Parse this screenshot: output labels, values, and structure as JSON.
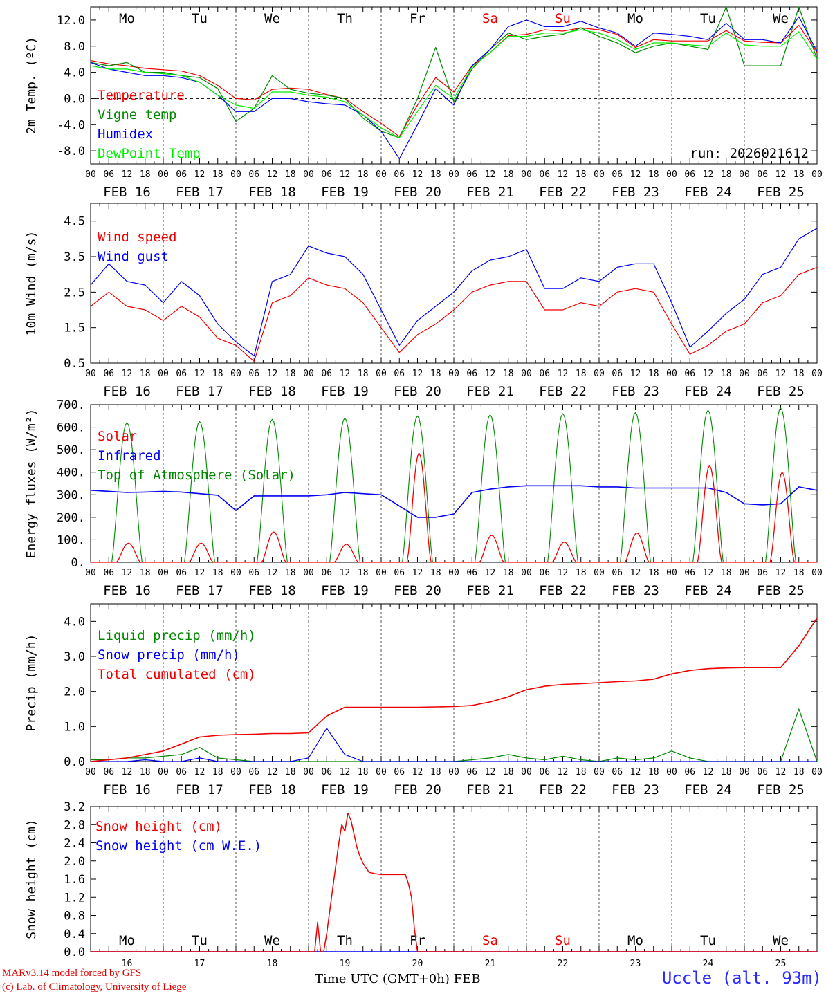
{
  "meta": {
    "run": "run: 2026021612",
    "credit_line1": "MARv3.14 model forced by GFS",
    "credit_line2": "(c) Lab. of Climatology, University of Liege",
    "location": "Uccle (alt. 93m)",
    "time_axis_label": "Time UTC (GMT+0h) FEB"
  },
  "colors": {
    "red": "#ee0000",
    "green": "#008800",
    "blue": "#0000ee",
    "lime": "#00ee00",
    "grid": "#555555"
  },
  "days": {
    "weekdays": [
      "Mo",
      "Tu",
      "We",
      "Th",
      "Fr",
      "Sa",
      "Su",
      "Mo",
      "Tu",
      "We"
    ],
    "weekday_colors": [
      "#000000",
      "#000000",
      "#000000",
      "#000000",
      "#000000",
      "#ee0000",
      "#ee0000",
      "#000000",
      "#000000",
      "#000000"
    ],
    "dates": [
      "FEB 16",
      "FEB 17",
      "FEB 18",
      "FEB 19",
      "FEB 20",
      "FEB 21",
      "FEB 22",
      "FEB 23",
      "FEB 24",
      "FEB 25"
    ],
    "day_numbers": [
      "16",
      "17",
      "18",
      "19",
      "20",
      "21",
      "22",
      "23",
      "24",
      "25"
    ],
    "hour_ticks": [
      "00",
      "06",
      "12",
      "18"
    ],
    "final_tick": "00"
  },
  "chart_data": [
    {
      "type": "line",
      "ylabel": "2m Temp. (ºC)",
      "ylim": [
        -10,
        14
      ],
      "yticks": [
        -8,
        -4,
        0,
        4,
        8,
        12
      ],
      "ytick_labels": [
        "-8.0",
        "-4.0",
        "0.0",
        "4.0",
        "8.0",
        "12.0"
      ],
      "zero_line": true,
      "x_hours": [
        0,
        6,
        12,
        18,
        24,
        30,
        36,
        42,
        48,
        54,
        60,
        66,
        72,
        78,
        84,
        90,
        96,
        102,
        108,
        114,
        120,
        126,
        132,
        138,
        144,
        150,
        156,
        162,
        168,
        174,
        180,
        186,
        192,
        198,
        204,
        210,
        216,
        222,
        228,
        234,
        240
      ],
      "series": [
        {
          "name": "Temperature",
          "color": "#ee0000",
          "values": [
            5.8,
            5.3,
            5.0,
            4.6,
            4.4,
            4.2,
            3.5,
            2.0,
            0.0,
            -0.2,
            1.4,
            1.6,
            1.4,
            0.6,
            0.0,
            -2.0,
            -3.8,
            -5.8,
            -1.0,
            3.2,
            1.0,
            5.0,
            7.0,
            9.6,
            9.8,
            10.5,
            10.3,
            10.8,
            10.5,
            9.8,
            7.8,
            9.0,
            8.8,
            8.8,
            8.8,
            10.4,
            8.8,
            8.6,
            8.5,
            11.2,
            7.0
          ]
        },
        {
          "name": "Vigne temp",
          "color": "#008800",
          "values": [
            5.5,
            5.0,
            5.5,
            4.0,
            4.0,
            3.5,
            3.2,
            1.5,
            -3.5,
            -1.5,
            3.5,
            1.4,
            0.8,
            0.5,
            0.0,
            -3.0,
            -5.0,
            -6.0,
            0.0,
            7.8,
            -0.5,
            4.5,
            7.5,
            10.0,
            9.0,
            9.5,
            9.8,
            10.8,
            9.5,
            8.5,
            7.0,
            8.0,
            8.5,
            8.0,
            7.5,
            14.0,
            5.0,
            5.0,
            5.0,
            14.0,
            6.0
          ]
        },
        {
          "name": "Humidex",
          "color": "#0000ee",
          "values": [
            5.5,
            4.5,
            4.0,
            3.5,
            3.5,
            3.2,
            2.5,
            0.5,
            -2.0,
            -2.0,
            0.0,
            0.0,
            -0.5,
            -0.8,
            -1.0,
            -2.5,
            -5.0,
            -9.2,
            -4.0,
            1.5,
            -1.0,
            5.0,
            7.5,
            11.0,
            12.0,
            11.0,
            11.0,
            11.8,
            10.8,
            10.0,
            8.0,
            10.0,
            9.8,
            9.5,
            9.0,
            11.5,
            9.0,
            9.0,
            8.5,
            12.5,
            7.2
          ]
        },
        {
          "name": "DewPoint Temp",
          "color": "#00ee00",
          "values": [
            5.0,
            4.5,
            4.5,
            4.0,
            3.8,
            3.5,
            2.5,
            0.5,
            -1.0,
            -1.5,
            1.0,
            1.0,
            0.5,
            0.2,
            -0.5,
            -2.5,
            -4.5,
            -6.0,
            -2.0,
            2.0,
            0.0,
            4.8,
            7.0,
            9.5,
            9.5,
            10.0,
            10.0,
            10.5,
            10.0,
            9.0,
            7.5,
            8.5,
            8.5,
            8.2,
            8.0,
            10.0,
            8.2,
            8.0,
            8.0,
            10.2,
            6.0
          ]
        }
      ],
      "legend": [
        "Temperature",
        "Vigne temp",
        "Humidex",
        "DewPoint Temp"
      ]
    },
    {
      "type": "line",
      "ylabel": "10m Wind (m/s)",
      "ylim": [
        0.5,
        5.0
      ],
      "yticks": [
        0.5,
        1.5,
        2.5,
        3.5,
        4.5
      ],
      "ytick_labels": [
        "0.5",
        "1.5",
        "2.5",
        "3.5",
        "4.5"
      ],
      "x_hours": [
        0,
        6,
        12,
        18,
        24,
        30,
        36,
        42,
        48,
        54,
        60,
        66,
        72,
        78,
        84,
        90,
        96,
        102,
        108,
        114,
        120,
        126,
        132,
        138,
        144,
        150,
        156,
        162,
        168,
        174,
        180,
        186,
        192,
        198,
        204,
        210,
        216,
        222,
        228,
        234,
        240
      ],
      "series": [
        {
          "name": "Wind speed",
          "color": "#ee0000",
          "values": [
            2.1,
            2.5,
            2.1,
            2.0,
            1.7,
            2.1,
            1.8,
            1.2,
            1.0,
            0.55,
            2.2,
            2.4,
            2.9,
            2.7,
            2.6,
            2.2,
            1.5,
            0.8,
            1.3,
            1.6,
            2.0,
            2.5,
            2.7,
            2.8,
            2.8,
            2.0,
            2.0,
            2.2,
            2.1,
            2.5,
            2.6,
            2.5,
            1.6,
            0.75,
            1.0,
            1.4,
            1.6,
            2.2,
            2.4,
            3.0,
            3.2
          ]
        },
        {
          "name": "Wind gust",
          "color": "#0000ee",
          "values": [
            2.7,
            3.3,
            2.8,
            2.7,
            2.2,
            2.8,
            2.4,
            1.6,
            1.1,
            0.7,
            2.8,
            3.0,
            3.8,
            3.6,
            3.5,
            3.0,
            2.0,
            1.0,
            1.7,
            2.1,
            2.5,
            3.1,
            3.4,
            3.5,
            3.7,
            2.6,
            2.6,
            2.9,
            2.8,
            3.2,
            3.3,
            3.3,
            2.2,
            0.95,
            1.4,
            1.9,
            2.3,
            3.0,
            3.2,
            4.0,
            4.3
          ]
        }
      ],
      "legend": [
        "Wind speed",
        "Wind gust"
      ]
    },
    {
      "type": "line",
      "ylabel": "Energy fluxes (W/m²)",
      "ylim": [
        0,
        700
      ],
      "yticks": [
        0,
        100,
        200,
        300,
        400,
        500,
        600,
        700
      ],
      "ytick_labels": [
        "0.",
        "100.",
        "200.",
        "300.",
        "400.",
        "500.",
        "600.",
        "700."
      ],
      "toa_peaks": [
        620,
        625,
        635,
        640,
        650,
        655,
        660,
        665,
        675,
        685
      ],
      "solar_peaks": [
        85,
        85,
        135,
        80,
        485,
        120,
        90,
        130,
        430,
        400
      ],
      "x_hours": [
        0,
        6,
        12,
        18,
        24,
        30,
        36,
        42,
        48,
        54,
        60,
        66,
        72,
        78,
        84,
        90,
        96,
        102,
        108,
        114,
        120,
        126,
        132,
        138,
        144,
        150,
        156,
        162,
        168,
        174,
        180,
        186,
        192,
        198,
        204,
        210,
        216,
        222,
        228,
        234,
        240
      ],
      "series": [
        {
          "name": "Solar",
          "color": "#ee0000"
        },
        {
          "name": "Infrared",
          "color": "#0000ee",
          "values": [
            320,
            315,
            310,
            312,
            315,
            312,
            305,
            298,
            230,
            295,
            295,
            295,
            295,
            300,
            310,
            305,
            300,
            250,
            200,
            200,
            215,
            310,
            325,
            335,
            340,
            340,
            340,
            340,
            335,
            335,
            330,
            330,
            330,
            330,
            330,
            310,
            260,
            255,
            260,
            335,
            320
          ]
        },
        {
          "name": "Top of Atmosphere (Solar)",
          "color": "#008800"
        }
      ],
      "legend": [
        "Solar",
        "Infrared",
        "Top of Atmosphere (Solar)"
      ]
    },
    {
      "type": "line",
      "ylabel": "Precip (mm/h)",
      "ylim": [
        0,
        4.5
      ],
      "yticks": [
        0,
        1,
        2,
        3,
        4
      ],
      "ytick_labels": [
        "0.0",
        "1.0",
        "2.0",
        "3.0",
        "4.0"
      ],
      "x_hours": [
        0,
        6,
        12,
        18,
        24,
        30,
        36,
        42,
        48,
        54,
        60,
        66,
        72,
        78,
        84,
        90,
        96,
        102,
        108,
        114,
        120,
        126,
        132,
        138,
        144,
        150,
        156,
        162,
        168,
        174,
        180,
        186,
        192,
        198,
        204,
        210,
        216,
        222,
        228,
        234,
        240
      ],
      "series": [
        {
          "name": "Liquid precip (mm/h)",
          "color": "#008800",
          "values": [
            0.05,
            0.05,
            0.1,
            0.1,
            0.15,
            0.2,
            0.4,
            0.1,
            0.05,
            0.0,
            0.0,
            0.0,
            0.0,
            0.0,
            0.0,
            0.0,
            0.0,
            0.0,
            0.0,
            0.0,
            0.0,
            0.05,
            0.1,
            0.2,
            0.1,
            0.05,
            0.15,
            0.05,
            0.0,
            0.1,
            0.05,
            0.1,
            0.3,
            0.1,
            0.0,
            0.0,
            0.0,
            0.0,
            0.0,
            1.5,
            0.0
          ]
        },
        {
          "name": "Snow precip (mm/h)",
          "color": "#0000ee",
          "values": [
            0.0,
            0.0,
            0.0,
            0.05,
            0.0,
            0.0,
            0.1,
            0.0,
            0.0,
            0.0,
            0.0,
            0.0,
            0.1,
            0.95,
            0.2,
            0.0,
            0.0,
            0.0,
            0.0,
            0.0,
            0.0,
            0.0,
            0.0,
            0.0,
            0.0,
            0.0,
            0.0,
            0.0,
            0.0,
            0.0,
            0.0,
            0.0,
            0.0,
            0.0,
            0.0,
            0.0,
            0.0,
            0.0,
            0.0,
            0.0,
            0.0
          ]
        },
        {
          "name": "Total cumulated (cm)",
          "color": "#ee0000",
          "values": [
            0.0,
            0.05,
            0.1,
            0.2,
            0.3,
            0.5,
            0.7,
            0.75,
            0.77,
            0.78,
            0.8,
            0.8,
            0.82,
            1.3,
            1.55,
            1.55,
            1.55,
            1.55,
            1.55,
            1.56,
            1.57,
            1.6,
            1.7,
            1.85,
            2.05,
            2.15,
            2.2,
            2.22,
            2.25,
            2.28,
            2.3,
            2.35,
            2.5,
            2.6,
            2.65,
            2.67,
            2.68,
            2.68,
            2.68,
            3.3,
            4.1
          ]
        }
      ],
      "legend": [
        "Liquid precip (mm/h)",
        "Snow precip (mm/h)",
        "Total cumulated (cm)"
      ]
    },
    {
      "type": "line",
      "ylabel": "Snow height (cm)",
      "ylim": [
        0,
        3.2
      ],
      "yticks": [
        0,
        0.4,
        0.8,
        1.2,
        1.6,
        2.0,
        2.4,
        2.8,
        3.2
      ],
      "ytick_labels": [
        "0.0",
        "0.4",
        "0.8",
        "1.2",
        "1.6",
        "2.0",
        "2.4",
        "2.8",
        "3.2"
      ],
      "series": [
        {
          "name": "Snow height (cm)",
          "color": "#ee0000",
          "points": [
            [
              0,
              0
            ],
            [
              74,
              0
            ],
            [
              75,
              0.65
            ],
            [
              76,
              0
            ],
            [
              77,
              0
            ],
            [
              78,
              0.4
            ],
            [
              80,
              1.4
            ],
            [
              82,
              2.4
            ],
            [
              83,
              2.8
            ],
            [
              84,
              2.65
            ],
            [
              85,
              3.05
            ],
            [
              86,
              2.9
            ],
            [
              87,
              2.6
            ],
            [
              88,
              2.3
            ],
            [
              89,
              2.1
            ],
            [
              90,
              1.95
            ],
            [
              91,
              1.85
            ],
            [
              92,
              1.75
            ],
            [
              94,
              1.72
            ],
            [
              96,
              1.7
            ],
            [
              98,
              1.7
            ],
            [
              104,
              1.7
            ],
            [
              105,
              1.5
            ],
            [
              106,
              1.2
            ],
            [
              107,
              0.5
            ],
            [
              108,
              0
            ],
            [
              240,
              0
            ]
          ]
        },
        {
          "name": "Snow height (cm W.E.)",
          "color": "#0000ee",
          "points": [
            [
              0,
              0
            ],
            [
              240,
              0
            ]
          ]
        }
      ],
      "legend": [
        "Snow height (cm)",
        "Snow height (cm W.E.)"
      ]
    }
  ]
}
